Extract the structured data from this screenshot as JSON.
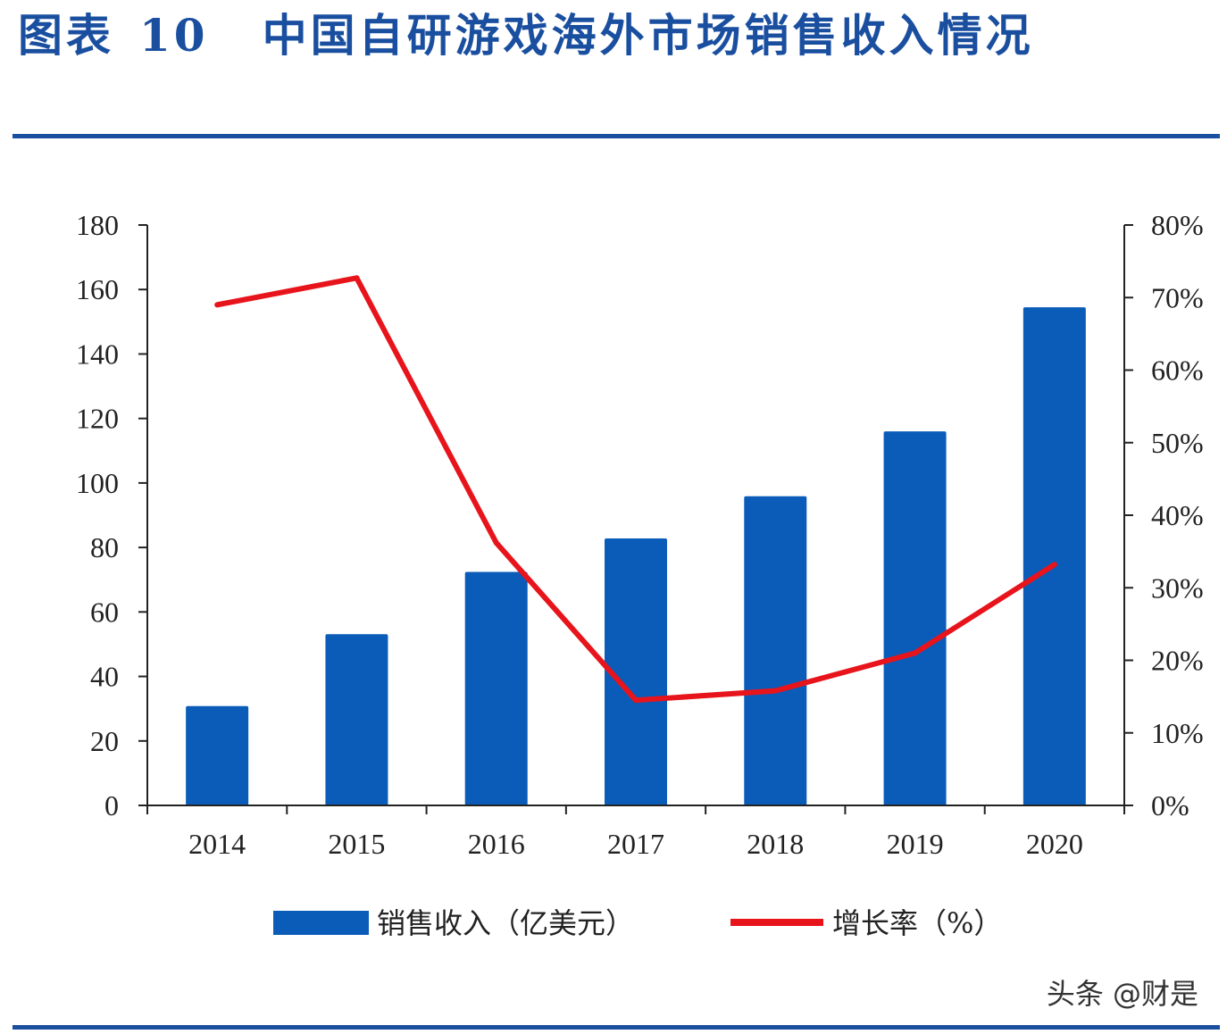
{
  "header": {
    "prefix": "图表",
    "number": "10",
    "title": "中国自研游戏海外市场销售收入情况"
  },
  "watermark": "头条 @财是",
  "colors": {
    "bar": "#0a5cb8",
    "line": "#e8141c",
    "rule": "#1a4fa0"
  },
  "chart_data": {
    "type": "bar+line",
    "categories": [
      "2014",
      "2015",
      "2016",
      "2017",
      "2018",
      "2019",
      "2020"
    ],
    "series": [
      {
        "name": "销售收入（亿美元）",
        "type": "bar",
        "axis": "left",
        "values": [
          30.8,
          53.1,
          72.4,
          82.8,
          95.9,
          116.0,
          154.5
        ]
      },
      {
        "name": "增长率（%）",
        "type": "line",
        "axis": "right",
        "values": [
          69.0,
          72.7,
          36.2,
          14.5,
          15.8,
          21.0,
          33.2
        ]
      }
    ],
    "left_axis": {
      "range": [
        0,
        180
      ],
      "ticks": [
        "0",
        "20",
        "40",
        "60",
        "80",
        "100",
        "120",
        "140",
        "160",
        "180"
      ]
    },
    "right_axis": {
      "range": [
        0,
        80
      ],
      "ticks": [
        "0%",
        "10%",
        "20%",
        "30%",
        "40%",
        "50%",
        "60%",
        "70%",
        "80%"
      ]
    },
    "grid": false,
    "legend_placement": "bottom"
  }
}
